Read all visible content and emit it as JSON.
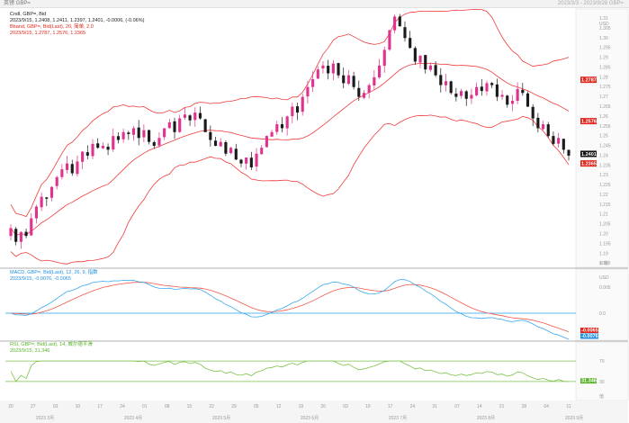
{
  "header": {
    "title": "英镑 GBP=",
    "right_text": "2023/3/3 - 2023/9/28 GBP="
  },
  "legends": {
    "main_l1": "Cndl, GBP=, Bid",
    "main_l2": "2023/9/15, 1.2408, 1.2411, 1.2397, 1.2401, -0.0006, (-0.06%)",
    "boll_l1": "Bband, GBP=, Bid(Last), 20, 简单, 2.0",
    "boll_l2": "2023/9/15, 1.2787, 1.2576, 1.2365",
    "macd_l1": "MACD, GBP=, Bid(Last), 12, 26, 9, 指数",
    "macd_l2": "2023/9/15, -0.0076, -0.0065",
    "rsi_l1": "RSI, GBP=, Bid(Last), 14, 威尔德平滑",
    "rsi_l2": "2023/9/15, 31.346"
  },
  "tags": {
    "bb_upper": "1.2787",
    "bb_mid": "1.2576",
    "bb_lower": "1.2365",
    "last": "1.2401",
    "macd_a": "-0.0065",
    "macd_b": "-0.0076",
    "rsi": "31.346"
  },
  "axes": {
    "main_ticks": [
      "1.31",
      "1.305",
      "1.30",
      "1.295",
      "1.29",
      "1.285",
      "1.28",
      "1.275",
      "1.27",
      "1.265",
      "1.26",
      "1.255",
      "1.25",
      "1.245",
      "1.24",
      "1.235",
      "1.23",
      "1.225",
      "1.22",
      "1.215",
      "1.21",
      "1.205",
      "1.20",
      "1.195",
      "1.19",
      "1.185"
    ],
    "main_unit": "USD",
    "main_scale": "价格",
    "macd_ticks": [
      "0.005",
      "0.0"
    ],
    "macd_unit": "USD",
    "rsi_ticks": [
      "70",
      "30"
    ],
    "rsi_unit": "值",
    "x_days": [
      "20",
      "27",
      "03",
      "10",
      "17",
      "24",
      "01",
      "08",
      "15",
      "22",
      "29",
      "05",
      "12",
      "19",
      "26",
      "03",
      "10",
      "17",
      "24",
      "31",
      "07",
      "14",
      "21",
      "28",
      "04",
      "11"
    ],
    "x_months": [
      "2023 3月",
      "2023 4月",
      "2023 5月",
      "2023 6月",
      "2023 7月",
      "2023 8月",
      "2023 9月"
    ]
  },
  "colors": {
    "up": "#e0338f",
    "down": "#1a1a1a",
    "bb": "#ef3b3b",
    "macd": "#39a8f0",
    "signal": "#ef5a4a",
    "rsi": "#7dc24a",
    "zero": "#29a0e8"
  },
  "chart_data": [
    {
      "type": "candlestick",
      "title": "Cndl, GBP=, Bid",
      "closes": [
        1.203,
        1.196,
        1.201,
        1.199,
        1.208,
        1.214,
        1.219,
        1.218,
        1.224,
        1.229,
        1.233,
        1.236,
        1.231,
        1.237,
        1.242,
        1.24,
        1.246,
        1.244,
        1.245,
        1.243,
        1.25,
        1.248,
        1.252,
        1.251,
        1.254,
        1.249,
        1.253,
        1.247,
        1.245,
        1.249,
        1.254,
        1.257,
        1.252,
        1.259,
        1.261,
        1.258,
        1.262,
        1.259,
        1.252,
        1.248,
        1.245,
        1.247,
        1.241,
        1.244,
        1.238,
        1.236,
        1.239,
        1.234,
        1.241,
        1.244,
        1.25,
        1.252,
        1.256,
        1.254,
        1.26,
        1.265,
        1.262,
        1.27,
        1.275,
        1.279,
        1.284,
        1.286,
        1.282,
        1.287,
        1.281,
        1.277,
        1.281,
        1.275,
        1.27,
        1.272,
        1.276,
        1.28,
        1.286,
        1.294,
        1.304,
        1.311,
        1.306,
        1.3,
        1.295,
        1.288,
        1.291,
        1.284,
        1.286,
        1.281,
        1.276,
        1.278,
        1.272,
        1.27,
        1.273,
        1.269,
        1.271,
        1.275,
        1.273,
        1.277,
        1.276,
        1.27,
        1.271,
        1.266,
        1.268,
        1.274,
        1.272,
        1.265,
        1.259,
        1.254,
        1.256,
        1.25,
        1.246,
        1.249,
        1.243,
        1.24
      ],
      "bb_upper_last": 1.2787,
      "bb_mid_last": 1.2576,
      "bb_lower_last": 1.2365,
      "last": 1.2401,
      "ylim": [
        1.183,
        1.313
      ]
    },
    {
      "type": "line",
      "title": "MACD, GBP=, Bid(Last), 12, 26, 9",
      "last_values": [
        -0.0076,
        -0.0065
      ]
    },
    {
      "type": "line",
      "title": "RSI, GBP=, Bid(Last), 14",
      "last_value": 31.346,
      "ylim": [
        0,
        100
      ],
      "levels": [
        70,
        30
      ]
    }
  ]
}
